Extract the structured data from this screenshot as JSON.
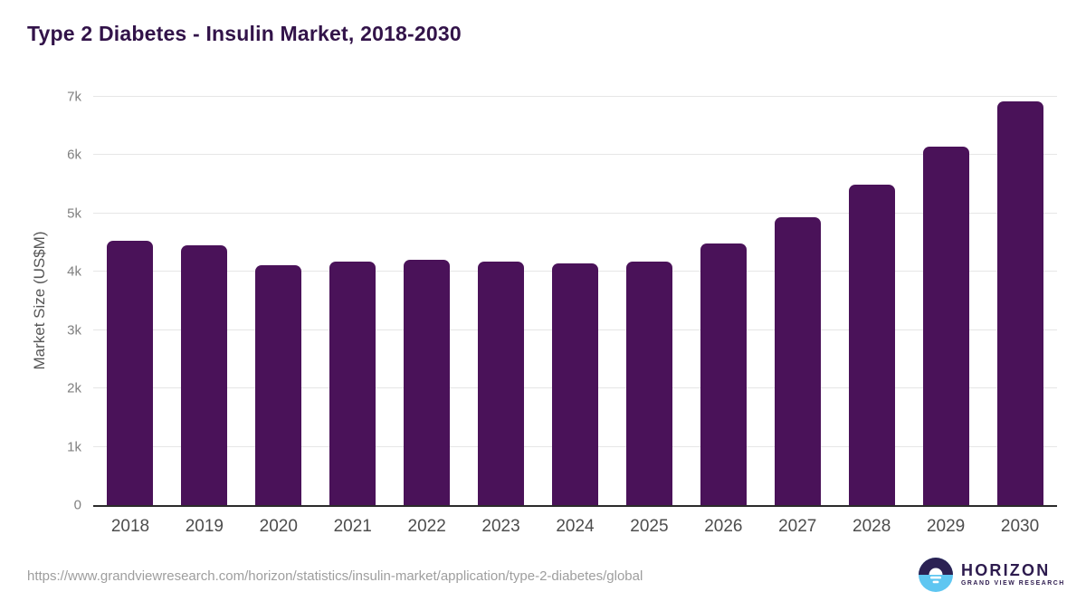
{
  "title": "Type 2 Diabetes - Insulin Market, 2018-2030",
  "footer": {
    "source_url": "https://www.grandviewresearch.com/horizon/statistics/insulin-market/application/type-2-diabetes/global",
    "logo": {
      "name": "HORIZON",
      "subtitle": "GRAND VIEW RESEARCH"
    }
  },
  "colors": {
    "bar": "#4a1259",
    "title": "#321349",
    "axis_baseline": "#2b2b2b",
    "gridline": "#e6e6e6",
    "tick_label": "#4d4d4d",
    "logo_navy": "#2b2153",
    "logo_blue": "#5ec6f1"
  },
  "chart_data": {
    "type": "bar",
    "title": "Type 2 Diabetes - Insulin Market, 2018-2030",
    "categories": [
      "2018",
      "2019",
      "2020",
      "2021",
      "2022",
      "2023",
      "2024",
      "2025",
      "2026",
      "2027",
      "2028",
      "2029",
      "2030"
    ],
    "values": [
      4530,
      4450,
      4110,
      4180,
      4200,
      4170,
      4140,
      4180,
      4480,
      4930,
      5500,
      6140,
      6930
    ],
    "xlabel": "",
    "ylabel": "Market Size (US$M)",
    "ylim": [
      0,
      7000
    ],
    "ytick_labels": [
      "0",
      "1k",
      "2k",
      "3k",
      "4k",
      "5k",
      "6k",
      "7k"
    ],
    "ytick_values": [
      0,
      1000,
      2000,
      3000,
      4000,
      5000,
      6000,
      7000
    ],
    "grid": true,
    "legend": false,
    "bar_color": "#4a1259"
  }
}
